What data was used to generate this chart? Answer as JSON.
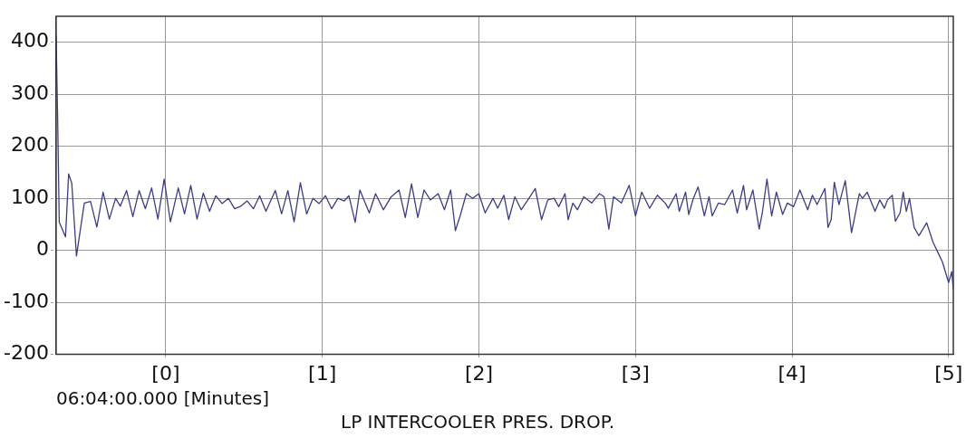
{
  "chart_data": {
    "type": "line",
    "title": "LP INTERCOOLER PRES. DROP.",
    "xlabel": "06:04:00.000 [Minutes]",
    "xlim": [
      -0.7,
      5.03
    ],
    "ylim": [
      -200,
      450
    ],
    "xticks": [
      {
        "value": 0,
        "label": "[0]"
      },
      {
        "value": 1,
        "label": "[1]"
      },
      {
        "value": 2,
        "label": "[2]"
      },
      {
        "value": 3,
        "label": "[3]"
      },
      {
        "value": 4,
        "label": "[4]"
      },
      {
        "value": 5,
        "label": "[5]"
      }
    ],
    "yticks": [
      -200,
      -100,
      0,
      100,
      200,
      300,
      400
    ],
    "grid": true,
    "legend": false,
    "marker": "none",
    "x": [
      -0.7,
      -0.69,
      -0.68,
      -0.64,
      -0.62,
      -0.6,
      -0.57,
      -0.52,
      -0.48,
      -0.44,
      -0.4,
      -0.36,
      -0.32,
      -0.29,
      -0.25,
      -0.21,
      -0.17,
      -0.13,
      -0.09,
      -0.05,
      -0.01,
      0.03,
      0.08,
      0.12,
      0.16,
      0.2,
      0.24,
      0.28,
      0.32,
      0.36,
      0.4,
      0.44,
      0.48,
      0.52,
      0.56,
      0.6,
      0.64,
      0.7,
      0.74,
      0.78,
      0.82,
      0.86,
      0.9,
      0.94,
      0.98,
      1.02,
      1.06,
      1.1,
      1.14,
      1.17,
      1.21,
      1.24,
      1.3,
      1.34,
      1.39,
      1.44,
      1.49,
      1.53,
      1.57,
      1.61,
      1.65,
      1.69,
      1.74,
      1.78,
      1.82,
      1.85,
      1.88,
      1.92,
      1.96,
      2.0,
      2.04,
      2.09,
      2.12,
      2.16,
      2.19,
      2.23,
      2.27,
      2.32,
      2.36,
      2.4,
      2.44,
      2.48,
      2.51,
      2.55,
      2.57,
      2.6,
      2.63,
      2.67,
      2.72,
      2.77,
      2.8,
      2.83,
      2.86,
      2.91,
      2.96,
      3.0,
      3.04,
      3.09,
      3.14,
      3.19,
      3.21,
      3.26,
      3.28,
      3.32,
      3.34,
      3.37,
      3.4,
      3.44,
      3.47,
      3.49,
      3.53,
      3.57,
      3.62,
      3.65,
      3.69,
      3.71,
      3.75,
      3.79,
      3.81,
      3.84,
      3.87,
      3.9,
      3.94,
      3.97,
      4.01,
      4.05,
      4.1,
      4.13,
      4.16,
      4.21,
      4.23,
      4.25,
      4.27,
      4.3,
      4.34,
      4.38,
      4.43,
      4.45,
      4.48,
      4.53,
      4.56,
      4.59,
      4.61,
      4.64,
      4.66,
      4.69,
      4.71,
      4.73,
      4.75,
      4.78,
      4.81,
      4.86,
      4.9,
      4.93,
      4.96,
      5.0,
      5.02,
      5.03
    ],
    "series": [
      {
        "color": "#3c3c8a",
        "values": [
          413,
          250,
          54,
          26,
          147,
          129,
          -11,
          91,
          94,
          45,
          112,
          60,
          100,
          85,
          115,
          65,
          115,
          80,
          120,
          60,
          137,
          55,
          120,
          70,
          125,
          60,
          110,
          75,
          105,
          90,
          100,
          80,
          85,
          95,
          80,
          105,
          75,
          115,
          70,
          115,
          55,
          130,
          70,
          100,
          90,
          105,
          80,
          100,
          95,
          105,
          54,
          116,
          72,
          109,
          78,
          103,
          116,
          63,
          128,
          63,
          116,
          97,
          109,
          78,
          116,
          38,
          66,
          109,
          100,
          109,
          72,
          100,
          81,
          106,
          59,
          103,
          78,
          100,
          119,
          59,
          97,
          100,
          84,
          109,
          59,
          91,
          78,
          103,
          91,
          109,
          103,
          41,
          103,
          91,
          125,
          66,
          112,
          81,
          106,
          91,
          81,
          109,
          75,
          112,
          69,
          100,
          122,
          66,
          103,
          66,
          91,
          88,
          116,
          72,
          125,
          78,
          116,
          41,
          72,
          137,
          66,
          112,
          69,
          91,
          84,
          116,
          78,
          106,
          88,
          119,
          44,
          59,
          131,
          88,
          134,
          34,
          109,
          100,
          112,
          75,
          97,
          81,
          97,
          106,
          56,
          72,
          112,
          75,
          100,
          44,
          28,
          53,
          16,
          -3,
          -22,
          -62,
          -41,
          -75
        ]
      }
    ]
  }
}
